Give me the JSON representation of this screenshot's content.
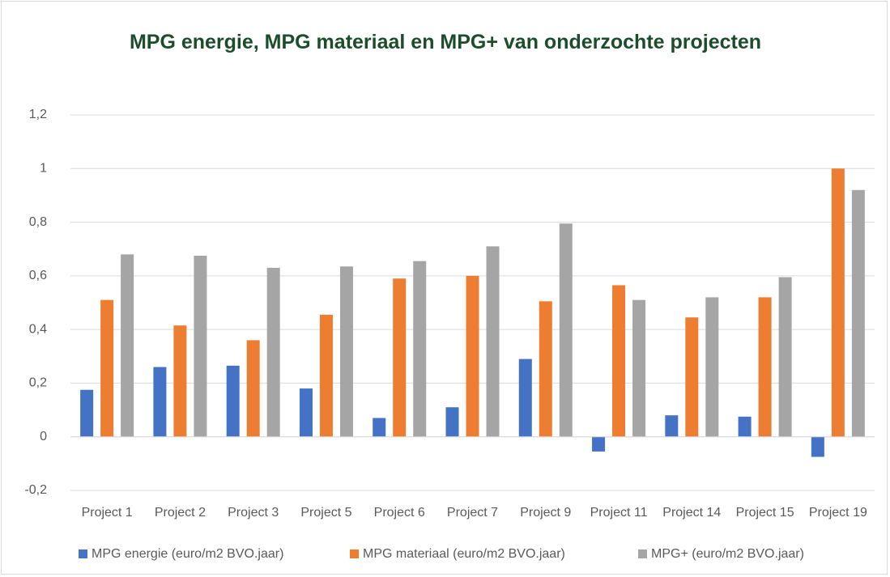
{
  "chart_data": {
    "type": "bar",
    "title": "MPG energie, MPG materiaal en MPG+ van onderzochte projecten",
    "categories": [
      "Project 1",
      "Project 2",
      "Project 3",
      "Project 5",
      "Project 6",
      "Project 7",
      "Project 9",
      "Project 11",
      "Project 14",
      "Project 15",
      "Project 19"
    ],
    "series": [
      {
        "name": "MPG energie (euro/m2 BVO.jaar)",
        "color": "#4472c4",
        "values": [
          0.175,
          0.26,
          0.265,
          0.18,
          0.07,
          0.11,
          0.29,
          -0.055,
          0.08,
          0.075,
          -0.075
        ]
      },
      {
        "name": "MPG materiaal (euro/m2 BVO.jaar)",
        "color": "#ed7d31",
        "values": [
          0.51,
          0.415,
          0.36,
          0.455,
          0.59,
          0.6,
          0.505,
          0.565,
          0.445,
          0.52,
          1.0
        ]
      },
      {
        "name": "MPG+ (euro/m2 BVO.jaar)",
        "color": "#a5a5a5",
        "values": [
          0.68,
          0.675,
          0.63,
          0.635,
          0.655,
          0.71,
          0.795,
          0.51,
          0.52,
          0.595,
          0.92
        ]
      }
    ],
    "ylim": [
      -0.2,
      1.2
    ],
    "yticks": [
      {
        "value": -0.2,
        "label": "-0,2"
      },
      0,
      {
        "value": 0.2,
        "label": "0,2"
      },
      {
        "value": 0.4,
        "label": "0,4"
      },
      {
        "value": 0.6,
        "label": "0,6"
      },
      {
        "value": 0.8,
        "label": "0,8"
      },
      1,
      {
        "value": 1.2,
        "label": "1,2"
      }
    ],
    "grid": true
  }
}
